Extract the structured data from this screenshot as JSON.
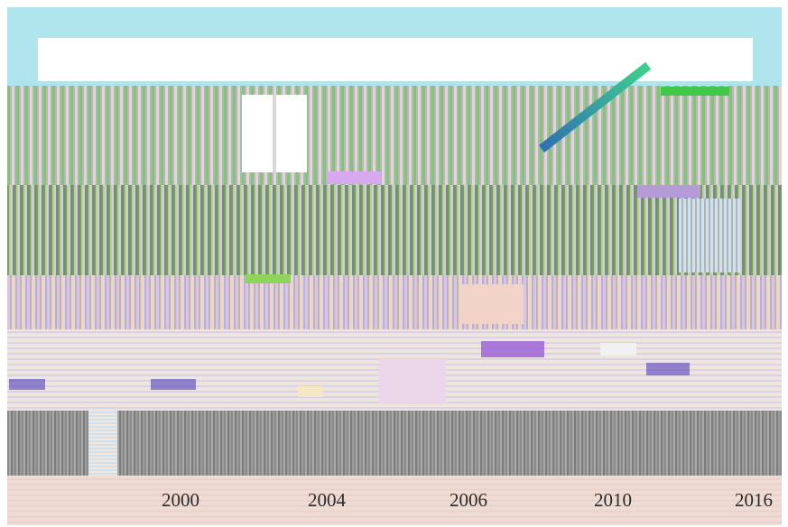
{
  "timeline": {
    "years": [
      "2000",
      "2004",
      "2006",
      "2010",
      "2016"
    ]
  },
  "colors": {
    "sky": "#aee4ec",
    "timeline_background": "#efd9d4",
    "text": "#2b2b2b"
  }
}
